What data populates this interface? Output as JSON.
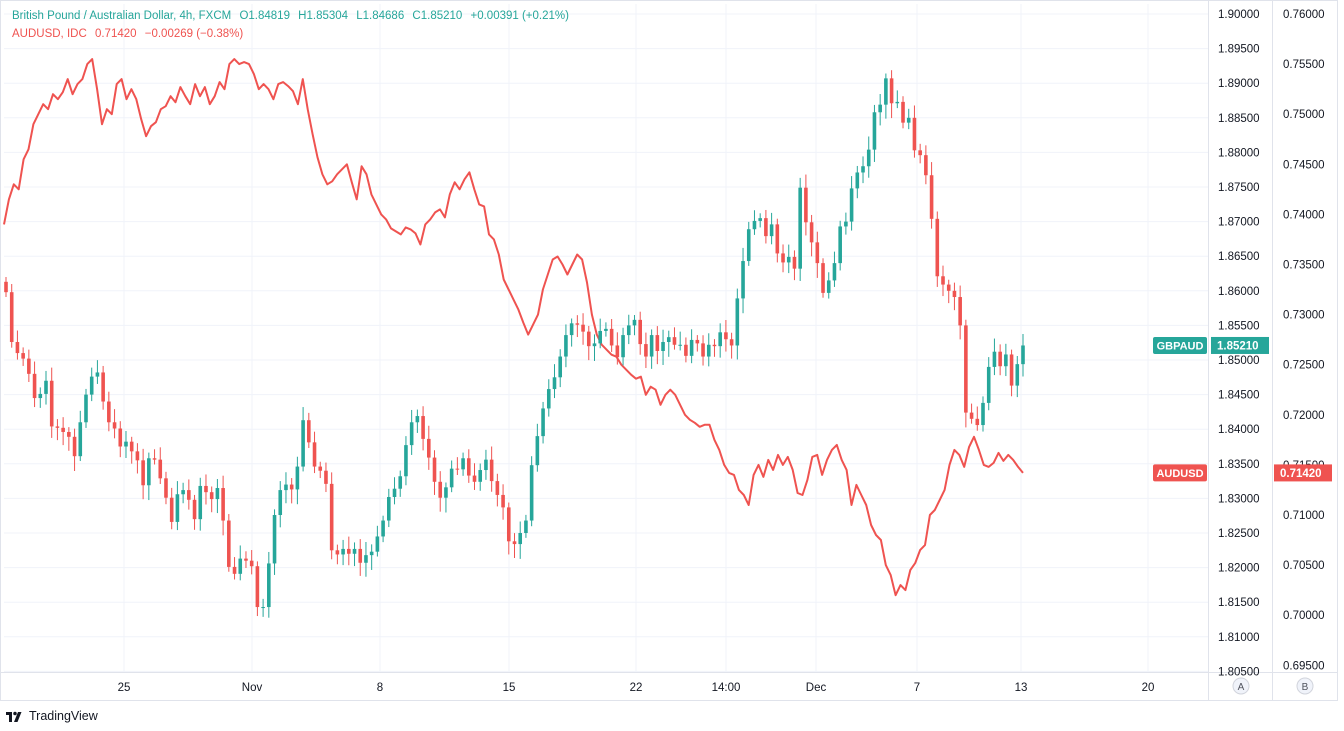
{
  "legend": {
    "gbpaud": {
      "name": "British Pound / Australian Dollar, 4h, FXCM",
      "o": "O1.84819",
      "h": "H1.85304",
      "l": "L1.84686",
      "c": "C1.85210",
      "change": "+0.00391 (+0.21%)"
    },
    "audusd": {
      "name": "AUDUSD, IDC",
      "value": "0.71420",
      "change": "−0.00269 (−0.38%)"
    }
  },
  "branding": "TradingView",
  "chart_data": {
    "type": "line",
    "x_ticks": [
      "25",
      "Nov",
      "8",
      "15",
      "22",
      "14:00",
      "Dec",
      "7",
      "13",
      "20"
    ],
    "scale_labels": [
      "A",
      "B"
    ],
    "axes": {
      "gbpaud": {
        "ticks": [
          "1.90000",
          "1.89500",
          "1.89000",
          "1.88500",
          "1.88000",
          "1.87500",
          "1.87000",
          "1.86500",
          "1.86000",
          "1.85500",
          "1.85000",
          "1.84500",
          "1.84000",
          "1.83500",
          "1.83000",
          "1.82500",
          "1.82000",
          "1.81500",
          "1.81000",
          "1.80500"
        ],
        "range": [
          1.805,
          1.9
        ]
      },
      "audusd": {
        "ticks": [
          "0.76000",
          "0.75500",
          "0.75000",
          "0.74500",
          "0.74000",
          "0.73500",
          "0.73000",
          "0.72500",
          "0.72000",
          "0.71500",
          "0.71000",
          "0.70500",
          "0.70000",
          "0.69500"
        ],
        "range": [
          0.695,
          0.76
        ]
      }
    },
    "colors": {
      "up": "#26a69a",
      "down": "#ef5350",
      "line": "#ef5350",
      "grid": "#f0f3fa"
    },
    "series": [
      {
        "name": "GBPAUD",
        "type": "candlestick",
        "last": "1.85210",
        "last_value": 1.8521,
        "closes": [
          1.8598,
          1.8526,
          1.851,
          1.8502,
          1.848,
          1.8445,
          1.8451,
          1.847,
          1.8404,
          1.8402,
          1.8396,
          1.8389,
          1.8361,
          1.841,
          1.845,
          1.8476,
          1.8482,
          1.844,
          1.841,
          1.8401,
          1.8375,
          1.8382,
          1.8368,
          1.8355,
          1.8319,
          1.8358,
          1.8356,
          1.8329,
          1.8301,
          1.8266,
          1.8306,
          1.8312,
          1.8298,
          1.827,
          1.8318,
          1.8309,
          1.8299,
          1.8315,
          1.8268,
          1.8201,
          1.8191,
          1.8213,
          1.821,
          1.8202,
          1.8143,
          1.8143,
          1.8206,
          1.8276,
          1.8312,
          1.832,
          1.8313,
          1.8346,
          1.8413,
          1.8381,
          1.8346,
          1.834,
          1.8321,
          1.8225,
          1.8219,
          1.8227,
          1.822,
          1.8227,
          1.8207,
          1.8218,
          1.8223,
          1.8245,
          1.8268,
          1.8302,
          1.8314,
          1.8332,
          1.8377,
          1.841,
          1.8419,
          1.8386,
          1.8359,
          1.8324,
          1.8301,
          1.8316,
          1.8343,
          1.8342,
          1.8358,
          1.8333,
          1.8324,
          1.8341,
          1.8356,
          1.8325,
          1.8305,
          1.8287,
          1.8238,
          1.8234,
          1.825,
          1.8268,
          1.8348,
          1.839,
          1.843,
          1.8458,
          1.8475,
          1.8505,
          1.8536,
          1.8553,
          1.8551,
          1.8541,
          1.852,
          1.8524,
          1.8542,
          1.8545,
          1.8521,
          1.8504,
          1.8536,
          1.855,
          1.8558,
          1.8523,
          1.8505,
          1.8536,
          1.8513,
          1.8526,
          1.8533,
          1.8522,
          1.8522,
          1.8506,
          1.8529,
          1.8524,
          1.8505,
          1.8522,
          1.852,
          1.854,
          1.853,
          1.8521,
          1.8589,
          1.8643,
          1.8689,
          1.8701,
          1.8705,
          1.8679,
          1.8696,
          1.8654,
          1.8641,
          1.8649,
          1.8632,
          1.8749,
          1.8699,
          1.867,
          1.864,
          1.8597,
          1.8615,
          1.864,
          1.8693,
          1.87,
          1.8748,
          1.8771,
          1.878,
          1.8804,
          1.8858,
          1.8869,
          1.8907,
          1.8871,
          1.8873,
          1.8843,
          1.885,
          1.8803,
          1.8796,
          1.8767,
          1.8704,
          1.8621,
          1.8609,
          1.86,
          1.8591,
          1.855,
          1.8424,
          1.8415,
          1.8406,
          1.8438,
          1.849,
          1.8512,
          1.8491,
          1.8508,
          1.8463,
          1.8494,
          1.8521
        ]
      },
      {
        "name": "AUDUSD",
        "type": "line",
        "last": "0.71420",
        "last_value": 0.7142,
        "values": [
          0.739,
          0.7415,
          0.743,
          0.7425,
          0.7455,
          0.7465,
          0.749,
          0.75,
          0.751,
          0.7505,
          0.752,
          0.7515,
          0.7522,
          0.7535,
          0.752,
          0.753,
          0.7535,
          0.755,
          0.7555,
          0.7525,
          0.749,
          0.7505,
          0.75,
          0.753,
          0.7535,
          0.7515,
          0.7525,
          0.7515,
          0.7495,
          0.7478,
          0.7488,
          0.7492,
          0.7505,
          0.7508,
          0.7518,
          0.7512,
          0.7527,
          0.7518,
          0.751,
          0.753,
          0.7518,
          0.7527,
          0.751,
          0.7518,
          0.7532,
          0.7525,
          0.755,
          0.7555,
          0.755,
          0.7552,
          0.755,
          0.754,
          0.7525,
          0.753,
          0.7525,
          0.7515,
          0.753,
          0.7532,
          0.7528,
          0.7523,
          0.751,
          0.7535,
          0.7505,
          0.748,
          0.7457,
          0.744,
          0.743,
          0.7433,
          0.744,
          0.7445,
          0.745,
          0.7432,
          0.7415,
          0.7448,
          0.744,
          0.742,
          0.741,
          0.74,
          0.7395,
          0.7386,
          0.7383,
          0.738,
          0.7387,
          0.7385,
          0.7381,
          0.737,
          0.739,
          0.7395,
          0.7402,
          0.7405,
          0.7397,
          0.742,
          0.7432,
          0.7425,
          0.7435,
          0.7442,
          0.7425,
          0.741,
          0.7408,
          0.738,
          0.7375,
          0.736,
          0.7335,
          0.7325,
          0.7315,
          0.7305,
          0.7292,
          0.728,
          0.729,
          0.73,
          0.7325,
          0.734,
          0.7355,
          0.7358,
          0.735,
          0.734,
          0.735,
          0.736,
          0.7355,
          0.7332,
          0.73,
          0.728,
          0.727,
          0.7265,
          0.726,
          0.7258,
          0.725,
          0.7245,
          0.724,
          0.7236,
          0.7238,
          0.722,
          0.7228,
          0.7225,
          0.721,
          0.722,
          0.7225,
          0.722,
          0.721,
          0.72,
          0.7195,
          0.7192,
          0.7188,
          0.719,
          0.719,
          0.7175,
          0.7165,
          0.715,
          0.7142,
          0.714,
          0.7125,
          0.712,
          0.711,
          0.714,
          0.715,
          0.7138,
          0.7155,
          0.7145,
          0.716,
          0.715,
          0.7158,
          0.7145,
          0.7122,
          0.712,
          0.7135,
          0.7158,
          0.716,
          0.714,
          0.7155,
          0.7165,
          0.717,
          0.7155,
          0.7145,
          0.711,
          0.713,
          0.712,
          0.711,
          0.709,
          0.708,
          0.7075,
          0.705,
          0.704,
          0.702,
          0.703,
          0.7025,
          0.7045,
          0.7052,
          0.7065,
          0.707,
          0.71,
          0.7105,
          0.7115,
          0.7125,
          0.715,
          0.7165,
          0.716,
          0.7148,
          0.7168,
          0.7178,
          0.7165,
          0.715,
          0.7148,
          0.7152,
          0.7162,
          0.7154,
          0.716,
          0.7155,
          0.7148,
          0.7142
        ]
      }
    ]
  }
}
